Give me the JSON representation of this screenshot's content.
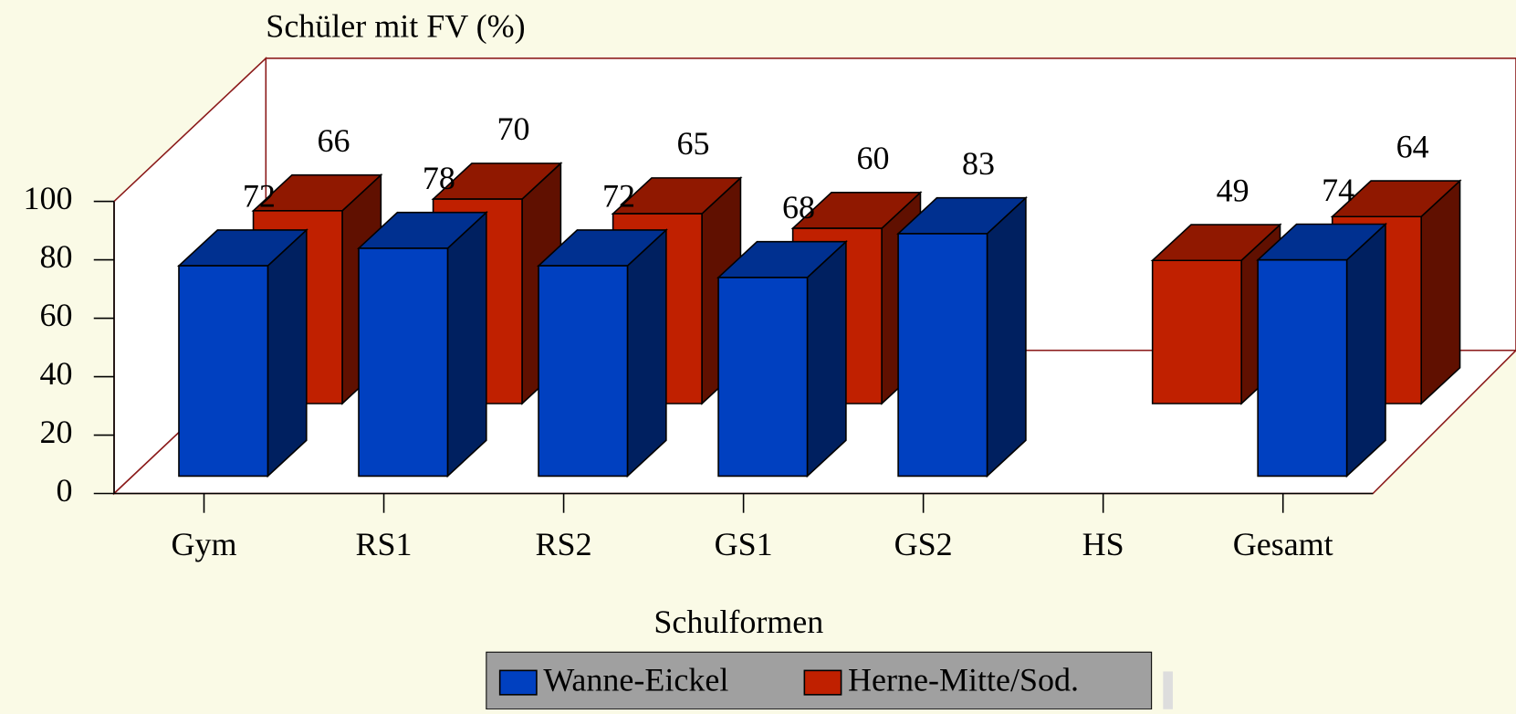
{
  "chart_data": {
    "type": "bar3d",
    "title": "Schüler mit FV (%)",
    "x_label": "Schulformen",
    "categories": [
      "Gym",
      "RS1",
      "RS2",
      "GS1",
      "GS2",
      "HS",
      "Gesamt"
    ],
    "series": [
      {
        "name": "Wanne-Eickel",
        "color": "#0040c0",
        "values": [
          72,
          78,
          72,
          68,
          83,
          null,
          74
        ]
      },
      {
        "name": "Herne-Mitte/Sod.",
        "color": "#c02000",
        "values": [
          66,
          70,
          65,
          60,
          null,
          49,
          64
        ]
      }
    ],
    "ylim": [
      0,
      100
    ],
    "yticks": [
      0,
      20,
      40,
      60,
      80,
      100
    ]
  }
}
